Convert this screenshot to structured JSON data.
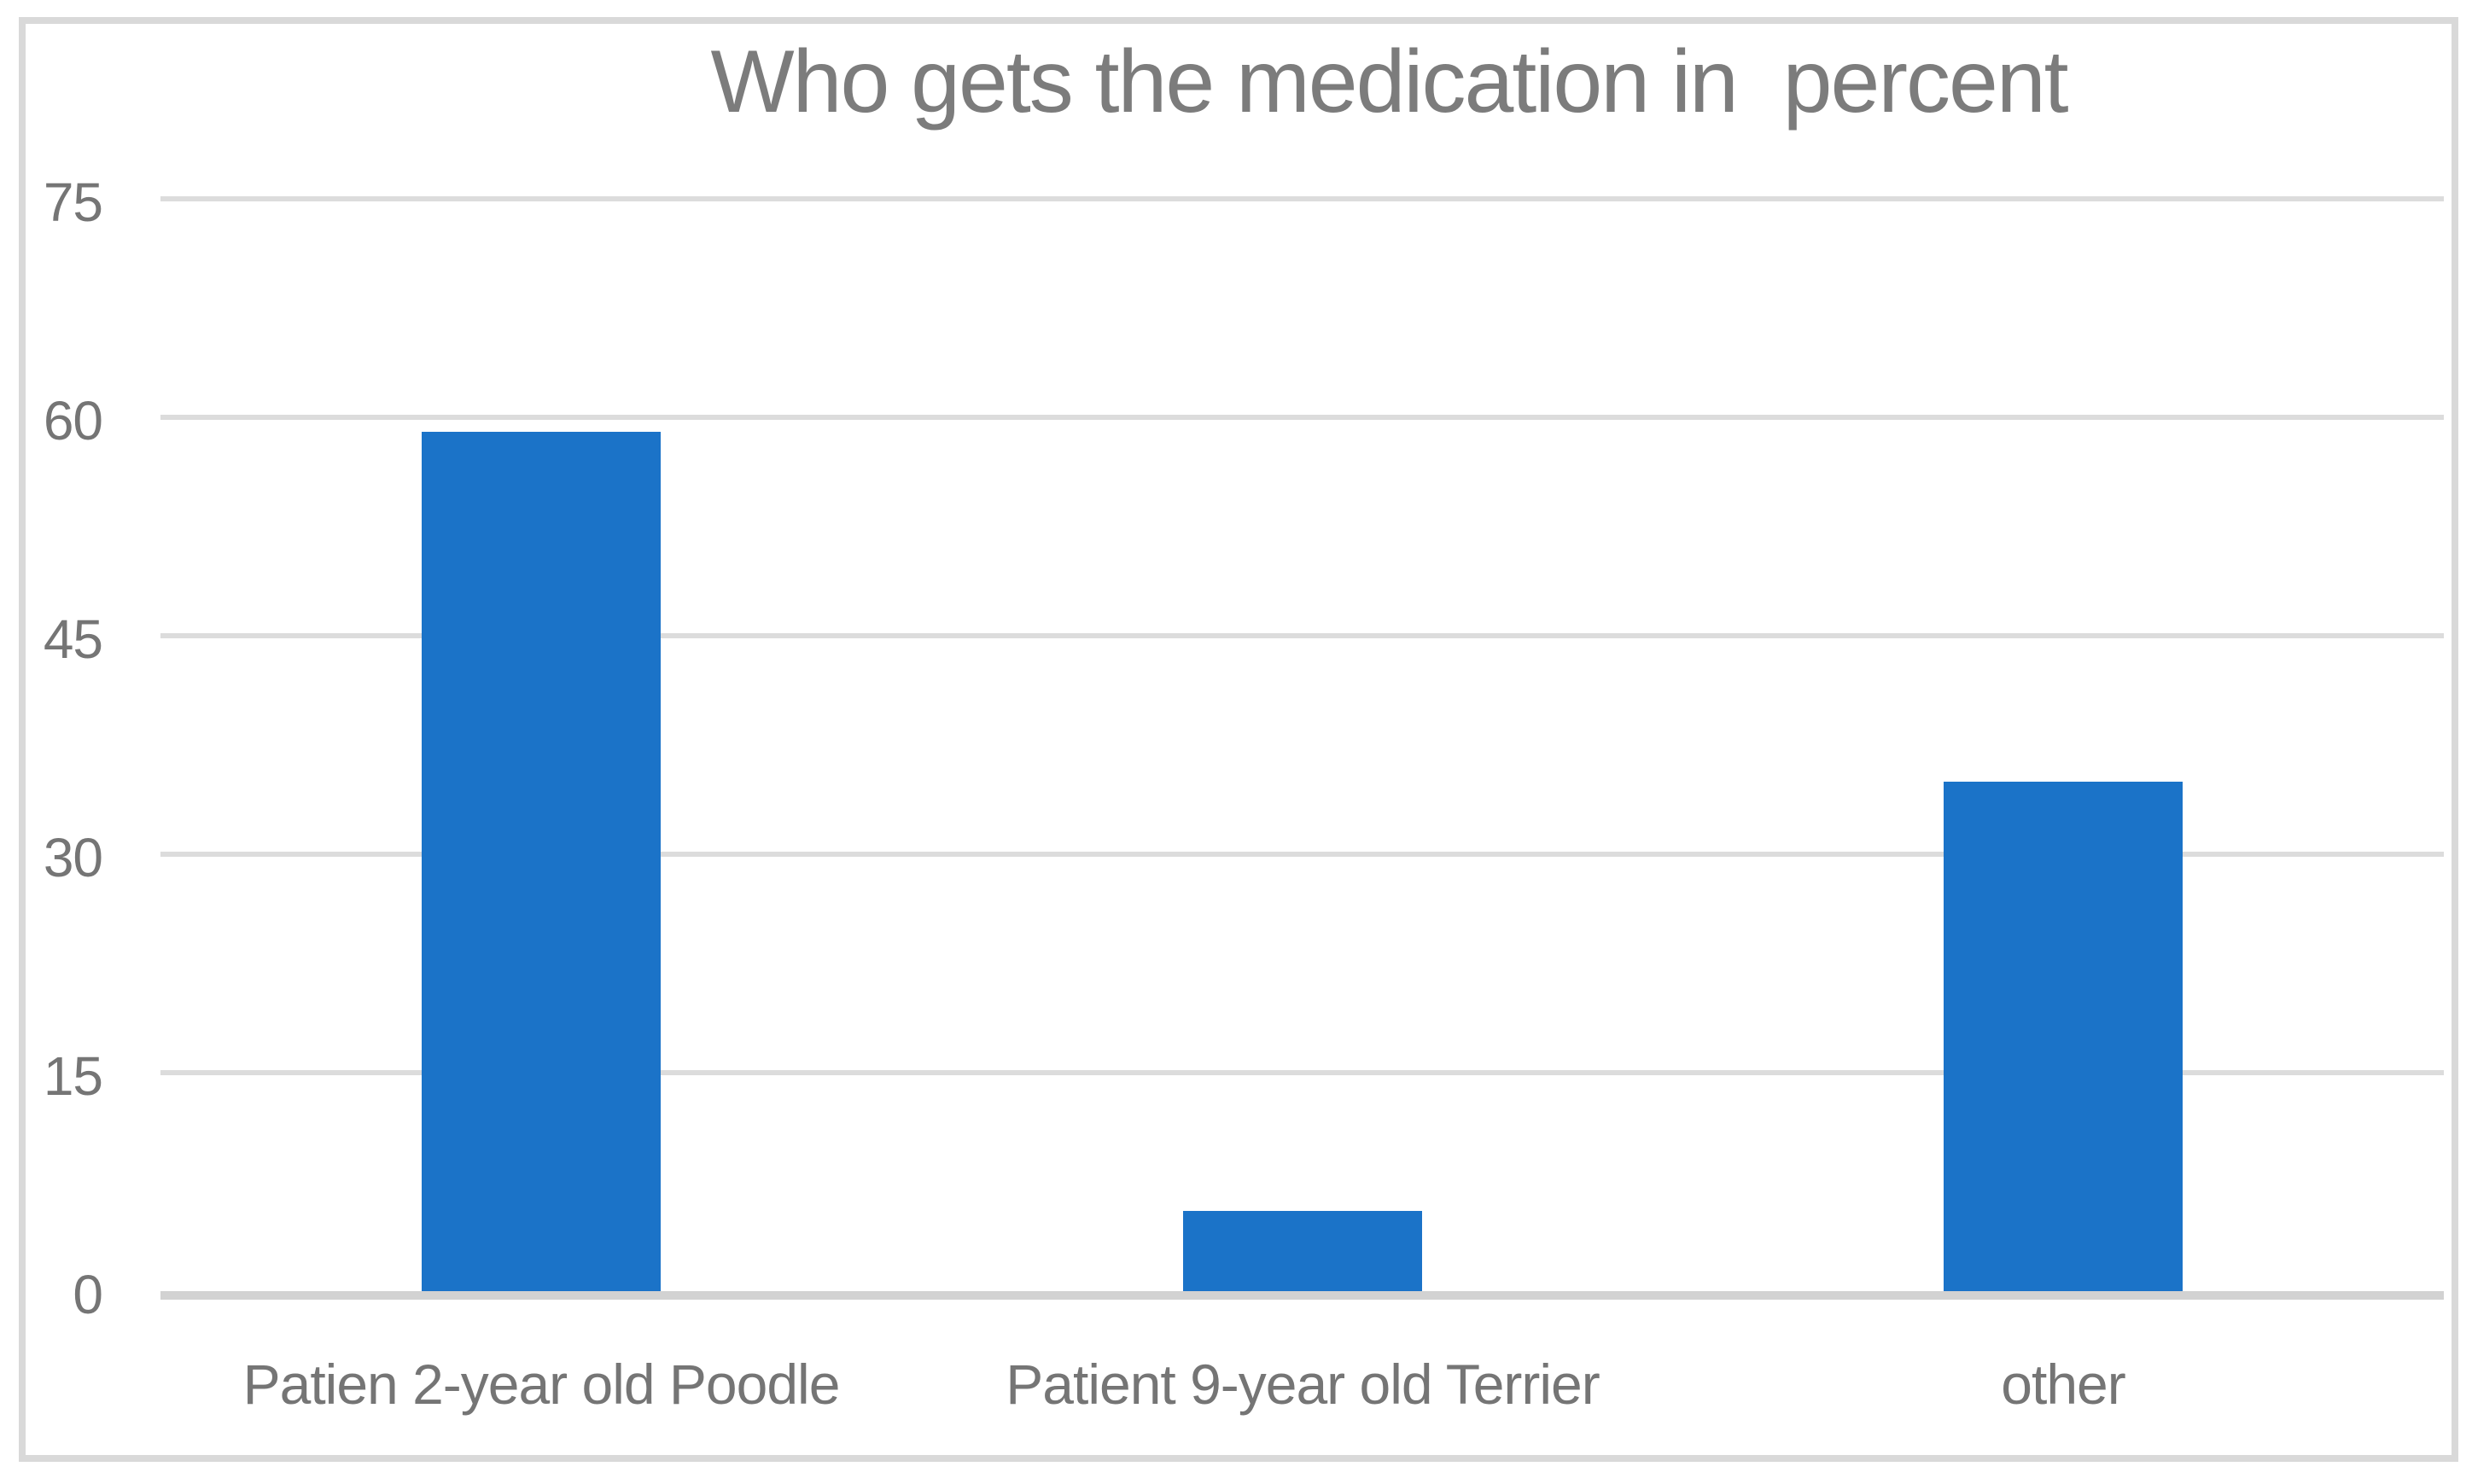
{
  "chart_data": {
    "type": "bar",
    "title": "Who gets the medication in  percent",
    "categories": [
      "Patien 2-year old Poodle",
      "Patient 9-year old Terrier",
      "other"
    ],
    "values": [
      59,
      5.5,
      35
    ],
    "series": [
      {
        "name": "Who gets the medication in percent",
        "values": [
          59,
          5.5,
          35
        ]
      }
    ],
    "xlabel": "",
    "ylabel": "",
    "ylim": [
      0,
      75
    ],
    "yticks": [
      0,
      15,
      30,
      45,
      60,
      75
    ],
    "grid": true,
    "legend_position": "none",
    "colors": {
      "bar": "#1b73c8",
      "gridline": "#dcdcdc",
      "axis_line": "#d2d2d2",
      "title_text": "#7c7c7c",
      "axis_text": "#757575",
      "frame_border": "#d9d9d9",
      "background": "#ffffff"
    }
  }
}
